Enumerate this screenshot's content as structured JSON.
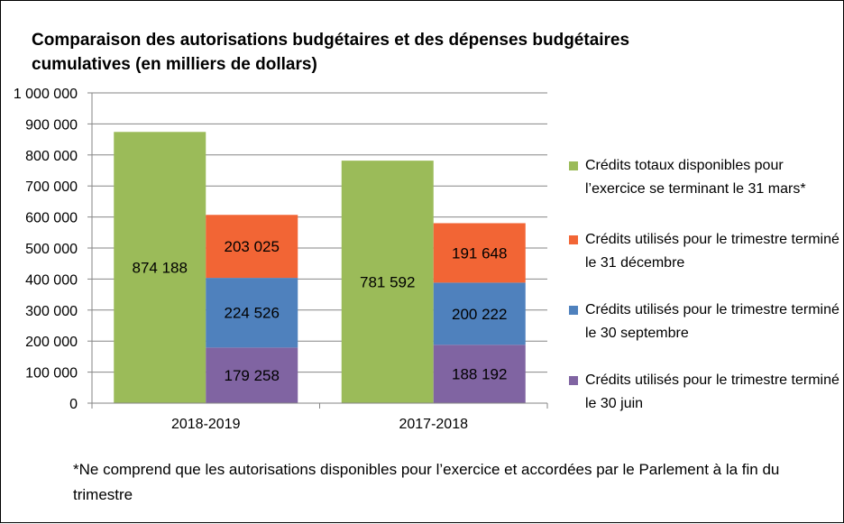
{
  "chart_data": {
    "type": "bar",
    "title": "Comparaison des autorisations budgétaires et des dépenses budgétaires cumulatives (en milliers de dollars)",
    "categories": [
      "2018-2019",
      "2017-2018"
    ],
    "ylim": [
      0,
      1000000
    ],
    "yticks": [
      0,
      100000,
      200000,
      300000,
      400000,
      500000,
      600000,
      700000,
      800000,
      900000,
      1000000
    ],
    "ytick_labels": [
      "0",
      "100 000",
      "200 000",
      "300 000",
      "400 000",
      "500 000",
      "600 000",
      "700 000",
      "800 000",
      "900 000",
      "1 000 000"
    ],
    "grid": true,
    "legend_position": "right",
    "series": [
      {
        "name": "Crédits totaux disponibles pour l’exercice se terminant le 31 mars*",
        "values": [
          874188,
          781592
        ],
        "labels": [
          "874 188",
          "781 592"
        ],
        "color": "#9BBB59",
        "stack": "total"
      },
      {
        "name": "Crédits utilisés pour le trimestre terminé le 30 juin",
        "values": [
          179258,
          188192
        ],
        "labels": [
          "179 258",
          "188 192"
        ],
        "color": "#8064A2",
        "stack": "used"
      },
      {
        "name": "Crédits utilisés pour le trimestre terminé le 30 septembre",
        "values": [
          224526,
          200222
        ],
        "labels": [
          "224 526",
          "200 222"
        ],
        "color": "#4F81BD",
        "stack": "used"
      },
      {
        "name": "Crédits utilisés pour le trimestre terminé le 31 décembre",
        "values": [
          203025,
          191648
        ],
        "labels": [
          "203 025",
          "191 648"
        ],
        "color": "#F26535",
        "stack": "used"
      }
    ],
    "legend_order": [
      0,
      3,
      2,
      1
    ],
    "footnote": "*Ne comprend que les autorisations disponibles pour l’exercice et accordées par le Parlement à la fin du trimestre"
  }
}
